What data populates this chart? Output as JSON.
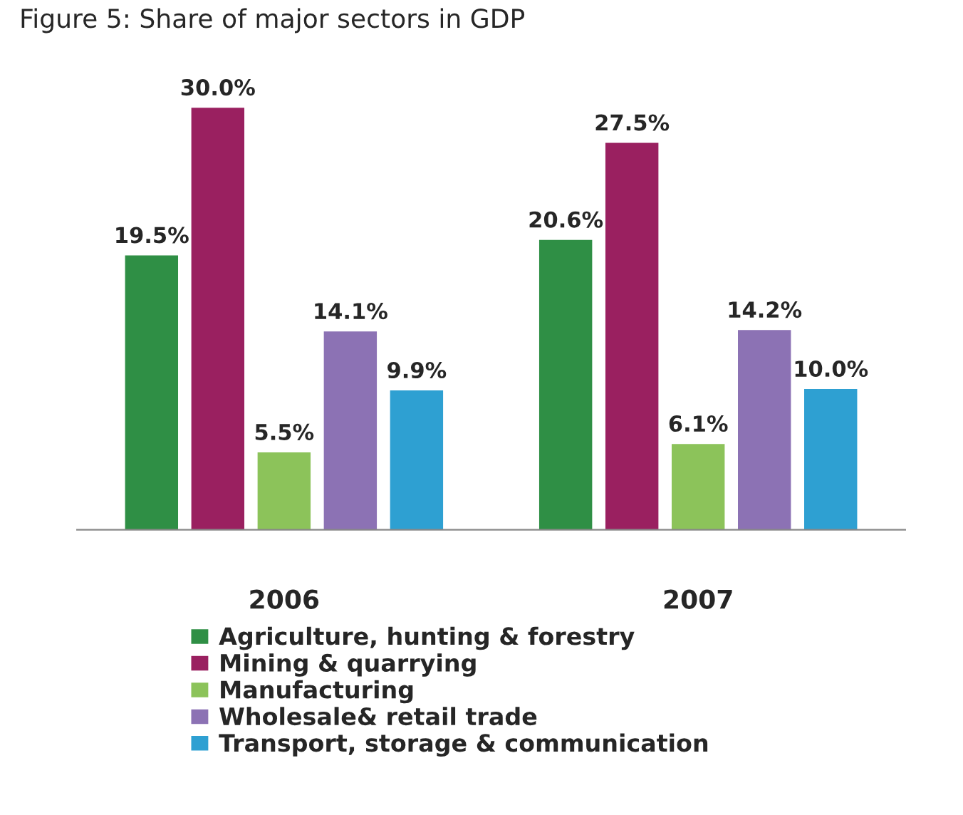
{
  "chart_data": {
    "type": "bar",
    "title": "Figure 5: Share of major sectors in GDP",
    "categories": [
      "2006",
      "2007"
    ],
    "series": [
      {
        "name": "Agriculture, hunting & forestry",
        "color": "#2f8f45",
        "values": [
          19.5,
          20.6
        ],
        "value_labels": [
          "19.5%",
          "20.6%"
        ]
      },
      {
        "name": "Mining & quarrying",
        "color": "#9a2060",
        "values": [
          30.0,
          27.5
        ],
        "value_labels": [
          "30.0%",
          "27.5%"
        ]
      },
      {
        "name": "Manufacturing",
        "color": "#8cc35a",
        "values": [
          5.5,
          6.1
        ],
        "value_labels": [
          "5.5%",
          "6.1%"
        ]
      },
      {
        "name": "Wholesale& retail trade",
        "color": "#8c72b4",
        "values": [
          14.1,
          14.2
        ],
        "value_labels": [
          "14.1%",
          "14.2%"
        ]
      },
      {
        "name": "Transport, storage & communication",
        "color": "#2ea0d2",
        "values": [
          9.9,
          10.0
        ],
        "value_labels": [
          "9.9%",
          "10.0%"
        ]
      }
    ],
    "grid": false,
    "legend": "bottom"
  }
}
